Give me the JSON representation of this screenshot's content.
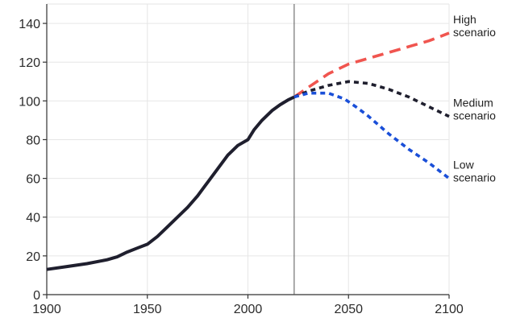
{
  "chart_data": {
    "type": "line",
    "title": "",
    "xlabel": "",
    "ylabel": "",
    "xlim": [
      1900,
      2100
    ],
    "ylim": [
      0,
      150
    ],
    "x_ticks": [
      1900,
      1950,
      2000,
      2050,
      2100
    ],
    "y_ticks": [
      0,
      20,
      40,
      60,
      80,
      100,
      120,
      140
    ],
    "grid": true,
    "reference_line_x": 2023,
    "series": [
      {
        "name": "",
        "style": "solid",
        "color": "#1f1f2e",
        "points": [
          [
            1900,
            13
          ],
          [
            1910,
            14.5
          ],
          [
            1920,
            16
          ],
          [
            1930,
            18
          ],
          [
            1935,
            19.5
          ],
          [
            1940,
            22
          ],
          [
            1945,
            24
          ],
          [
            1950,
            26
          ],
          [
            1955,
            30
          ],
          [
            1960,
            35
          ],
          [
            1965,
            40
          ],
          [
            1970,
            45
          ],
          [
            1975,
            51
          ],
          [
            1980,
            58
          ],
          [
            1985,
            65
          ],
          [
            1990,
            72
          ],
          [
            1995,
            77
          ],
          [
            2000,
            80
          ],
          [
            2003,
            85
          ],
          [
            2007,
            90
          ],
          [
            2012,
            95
          ],
          [
            2016,
            98
          ],
          [
            2020,
            100.5
          ],
          [
            2023,
            102
          ]
        ]
      },
      {
        "name": "High scenario",
        "style": "dashed",
        "color": "#f0554f",
        "points": [
          [
            2023,
            102
          ],
          [
            2030,
            107
          ],
          [
            2040,
            114
          ],
          [
            2050,
            119
          ],
          [
            2060,
            122
          ],
          [
            2070,
            125
          ],
          [
            2080,
            128
          ],
          [
            2090,
            131
          ],
          [
            2100,
            135
          ]
        ]
      },
      {
        "name": "Medium scenario",
        "style": "dotted",
        "color": "#1f1f2e",
        "points": [
          [
            2023,
            102
          ],
          [
            2030,
            105
          ],
          [
            2040,
            108
          ],
          [
            2050,
            110
          ],
          [
            2060,
            109
          ],
          [
            2070,
            106
          ],
          [
            2080,
            102
          ],
          [
            2090,
            97
          ],
          [
            2100,
            92
          ]
        ]
      },
      {
        "name": "Low scenario",
        "style": "dotted",
        "color": "#1a4fd8",
        "points": [
          [
            2023,
            102
          ],
          [
            2030,
            104
          ],
          [
            2040,
            104
          ],
          [
            2048,
            101
          ],
          [
            2055,
            96
          ],
          [
            2060,
            92
          ],
          [
            2070,
            83
          ],
          [
            2080,
            75
          ],
          [
            2090,
            68
          ],
          [
            2100,
            60
          ]
        ]
      }
    ],
    "labels": [
      {
        "series": "High scenario",
        "line1": "High",
        "line2": "scenario"
      },
      {
        "series": "Medium scenario",
        "line1": "Medium",
        "line2": "scenario"
      },
      {
        "series": "Low scenario",
        "line1": "Low",
        "line2": "scenario"
      }
    ]
  }
}
